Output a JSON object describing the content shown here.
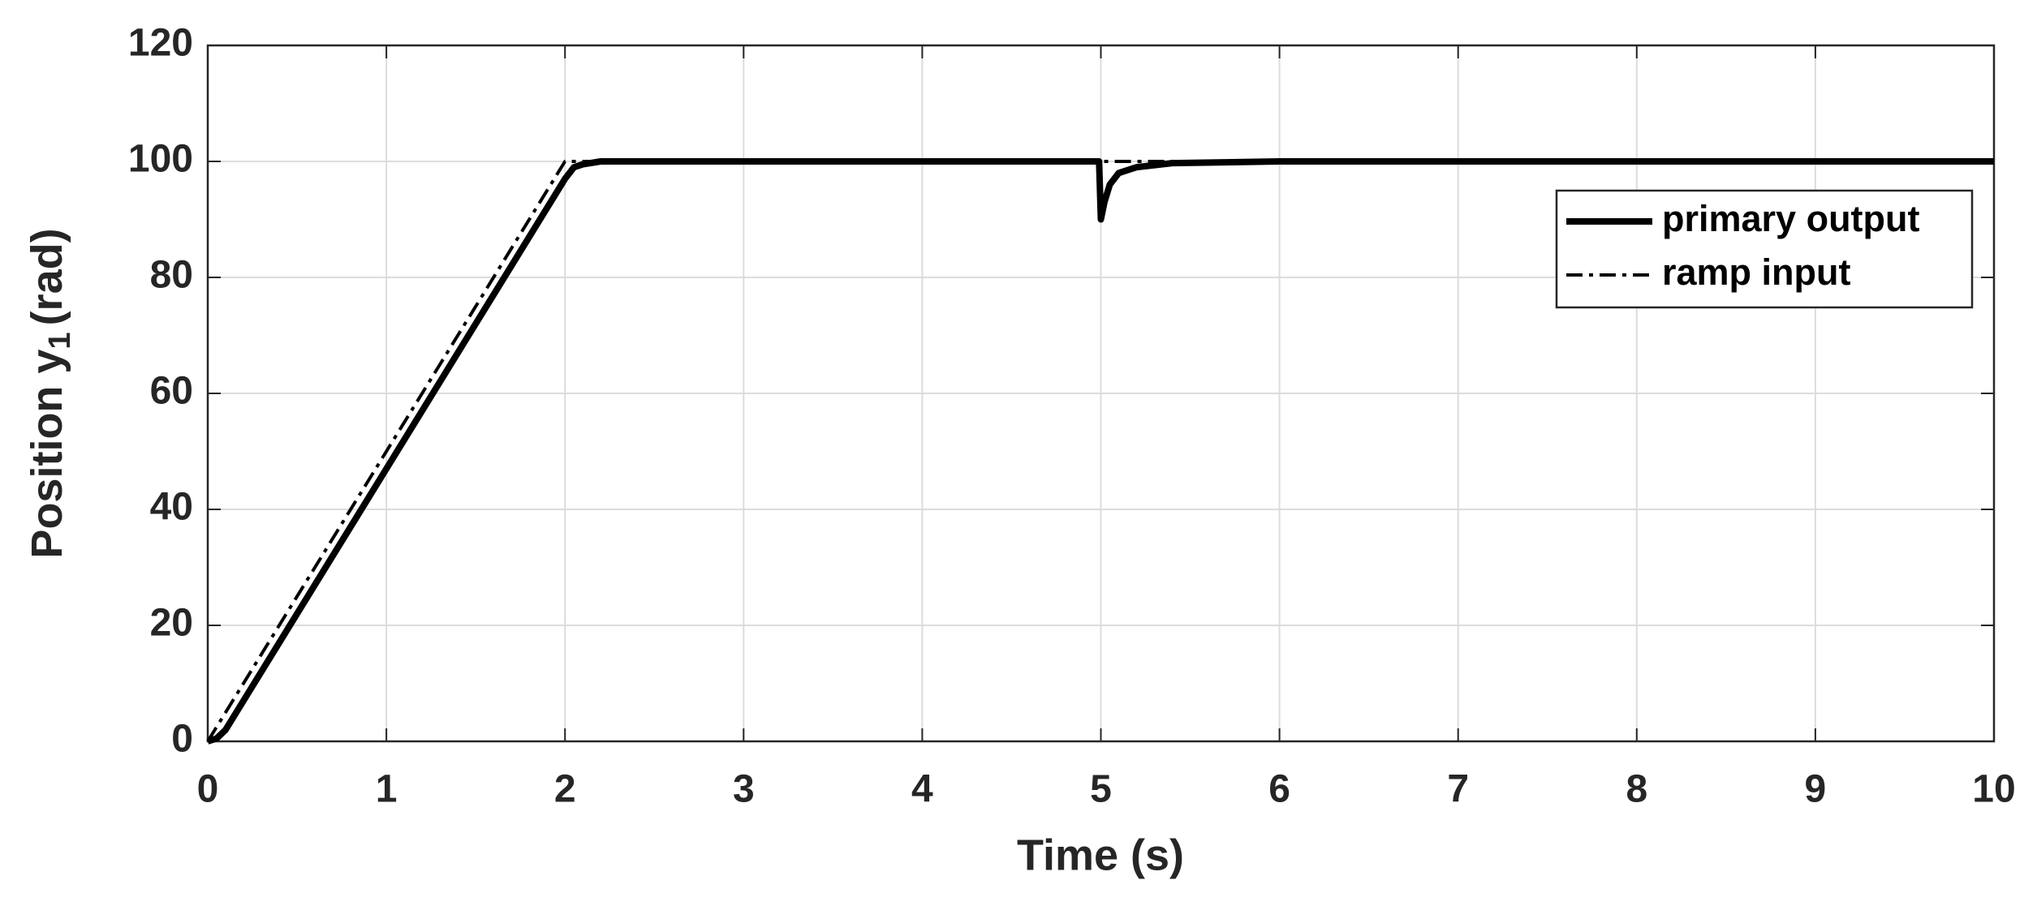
{
  "chart_data": {
    "type": "line",
    "xlabel": "Time (s)",
    "ylabel": {
      "text": "Position y",
      "subscript": "1",
      "unit": "(rad)"
    },
    "xlim": [
      0,
      10
    ],
    "xticks": [
      0,
      1,
      2,
      3,
      4,
      5,
      6,
      7,
      8,
      9,
      10
    ],
    "ylim": [
      0,
      120
    ],
    "yticks": [
      0,
      20,
      40,
      60,
      80,
      100,
      120
    ],
    "grid": true,
    "legend": "northeast",
    "series": [
      {
        "name": "primary output",
        "color": "#000000",
        "style": "solid",
        "x": [
          0,
          0.05,
          0.1,
          0.2,
          0.5,
          1,
          1.5,
          1.9,
          2,
          2.05,
          2.1,
          2.2,
          3,
          4,
          4.99,
          5,
          5.02,
          5.05,
          5.1,
          5.2,
          5.4,
          6,
          10
        ],
        "values": [
          0,
          0.5,
          2,
          7,
          22,
          47,
          72,
          92,
          97,
          99,
          99.5,
          100,
          100,
          100,
          100,
          90,
          93,
          96,
          98,
          99,
          99.7,
          100,
          100
        ]
      },
      {
        "name": "ramp input",
        "color": "#000000",
        "style": "dashdot",
        "x": [
          0,
          2,
          10
        ],
        "values": [
          0,
          100,
          100
        ]
      }
    ]
  }
}
